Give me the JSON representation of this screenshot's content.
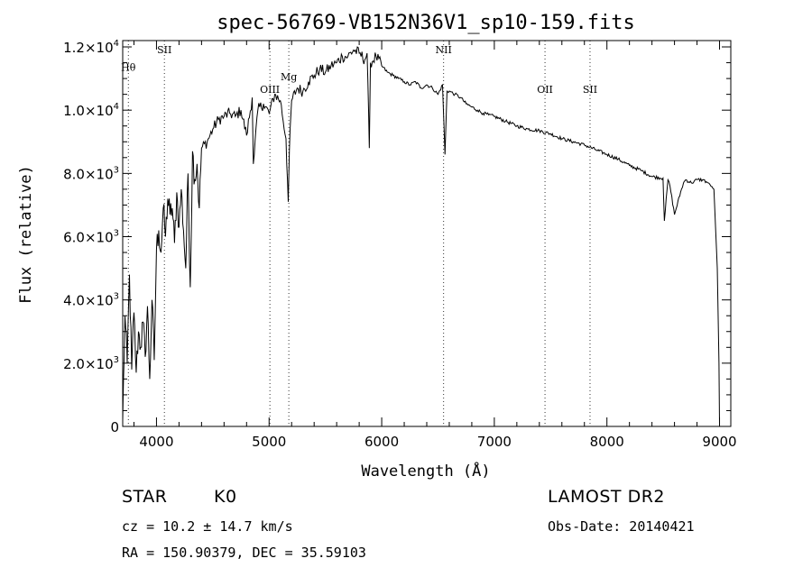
{
  "chart_data": {
    "type": "line",
    "title": "spec-56769-VB152N36V1_sp10-159.fits",
    "xlabel": "Wavelength (Å)",
    "ylabel": "Flux (relative)",
    "xlim": [
      3700,
      9100
    ],
    "ylim": [
      0,
      12200
    ],
    "x_ticks": [
      {
        "value": 4000,
        "label": "4000"
      },
      {
        "value": 5000,
        "label": "5000"
      },
      {
        "value": 6000,
        "label": "6000"
      },
      {
        "value": 7000,
        "label": "7000"
      },
      {
        "value": 8000,
        "label": "8000"
      },
      {
        "value": 9000,
        "label": "9000"
      }
    ],
    "y_ticks": [
      {
        "value": 0,
        "mantissa": "0",
        "exponent": ""
      },
      {
        "value": 2000,
        "mantissa": "2.0×10",
        "exponent": "3"
      },
      {
        "value": 4000,
        "mantissa": "4.0×10",
        "exponent": "3"
      },
      {
        "value": 6000,
        "mantissa": "6.0×10",
        "exponent": "3"
      },
      {
        "value": 8000,
        "mantissa": "8.0×10",
        "exponent": "3"
      },
      {
        "value": 10000,
        "mantissa": "1.0×10",
        "exponent": "4"
      },
      {
        "value": 12000,
        "mantissa": "1.2×10",
        "exponent": "4"
      }
    ],
    "grid": false,
    "legend": "none",
    "line_markers": [
      {
        "label": "Hθ",
        "wavelength": 3750,
        "label_flux": 11250
      },
      {
        "label": "SII",
        "wavelength": 4070,
        "label_flux": 11800
      },
      {
        "label": "OIII",
        "wavelength": 5007,
        "label_flux": 10550
      },
      {
        "label": "Mg",
        "wavelength": 5175,
        "label_flux": 10950
      },
      {
        "label": "NII",
        "wavelength": 6550,
        "label_flux": 11800
      },
      {
        "label": "OII",
        "wavelength": 7450,
        "label_flux": 10550
      },
      {
        "label": "SII",
        "wavelength": 7850,
        "label_flux": 10550
      }
    ],
    "series": [
      {
        "color": "#000000",
        "x": [
          3700,
          3720,
          3740,
          3760,
          3780,
          3800,
          3820,
          3840,
          3860,
          3880,
          3900,
          3920,
          3940,
          3960,
          3980,
          4000,
          4020,
          4040,
          4060,
          4080,
          4100,
          4120,
          4140,
          4160,
          4180,
          4200,
          4220,
          4240,
          4260,
          4280,
          4300,
          4320,
          4340,
          4360,
          4380,
          4400,
          4450,
          4500,
          4550,
          4600,
          4650,
          4700,
          4750,
          4800,
          4850,
          4860,
          4900,
          4950,
          5000,
          5050,
          5100,
          5150,
          5170,
          5180,
          5200,
          5250,
          5300,
          5350,
          5400,
          5450,
          5500,
          5550,
          5600,
          5650,
          5700,
          5750,
          5800,
          5850,
          5870,
          5890,
          5900,
          5950,
          6000,
          6050,
          6100,
          6150,
          6200,
          6250,
          6300,
          6350,
          6400,
          6450,
          6500,
          6540,
          6562,
          6580,
          6600,
          6650,
          6700,
          6750,
          6800,
          6850,
          6900,
          6950,
          7000,
          7100,
          7200,
          7300,
          7400,
          7500,
          7600,
          7700,
          7800,
          7900,
          8000,
          8100,
          8200,
          8300,
          8400,
          8498,
          8510,
          8542,
          8560,
          8600,
          8662,
          8680,
          8700,
          8750,
          8800,
          8850,
          8900,
          8950,
          8980,
          8995,
          9000
        ],
        "y": [
          200,
          3500,
          2000,
          4800,
          1800,
          3600,
          1700,
          3000,
          2500,
          3300,
          2200,
          3800,
          1500,
          4000,
          2100,
          5600,
          6200,
          5500,
          6900,
          6000,
          7200,
          6700,
          6900,
          5800,
          7400,
          6300,
          7500,
          6200,
          5000,
          8000,
          4400,
          8700,
          7800,
          8300,
          6900,
          8800,
          9000,
          9400,
          9700,
          9800,
          9900,
          9800,
          10000,
          9200,
          10400,
          8300,
          10000,
          10200,
          9900,
          10500,
          10300,
          9100,
          7100,
          8700,
          10300,
          10700,
          10600,
          10900,
          11100,
          11300,
          11200,
          11400,
          11500,
          11700,
          11700,
          11900,
          11800,
          11600,
          11800,
          8800,
          11500,
          11700,
          11400,
          11200,
          11100,
          11000,
          10900,
          10800,
          10900,
          10700,
          10800,
          10700,
          10500,
          10800,
          8600,
          10600,
          10600,
          10500,
          10400,
          10200,
          10100,
          10000,
          9900,
          9850,
          9800,
          9650,
          9500,
          9400,
          9350,
          9250,
          9100,
          9000,
          8900,
          8750,
          8600,
          8450,
          8250,
          8100,
          7900,
          7850,
          6500,
          7800,
          7600,
          6700,
          7500,
          7700,
          7800,
          7700,
          7800,
          7800,
          7700,
          7500,
          5000,
          2000,
          0
        ]
      }
    ]
  },
  "footer": {
    "class_label": "STAR",
    "subclass": "K0",
    "survey": "LAMOST DR2",
    "redshift": "cz = 10.2 ± 14.7 km/s",
    "obs_date": "Obs-Date: 20140421",
    "coords": "RA = 150.90379, DEC =  35.59103"
  }
}
